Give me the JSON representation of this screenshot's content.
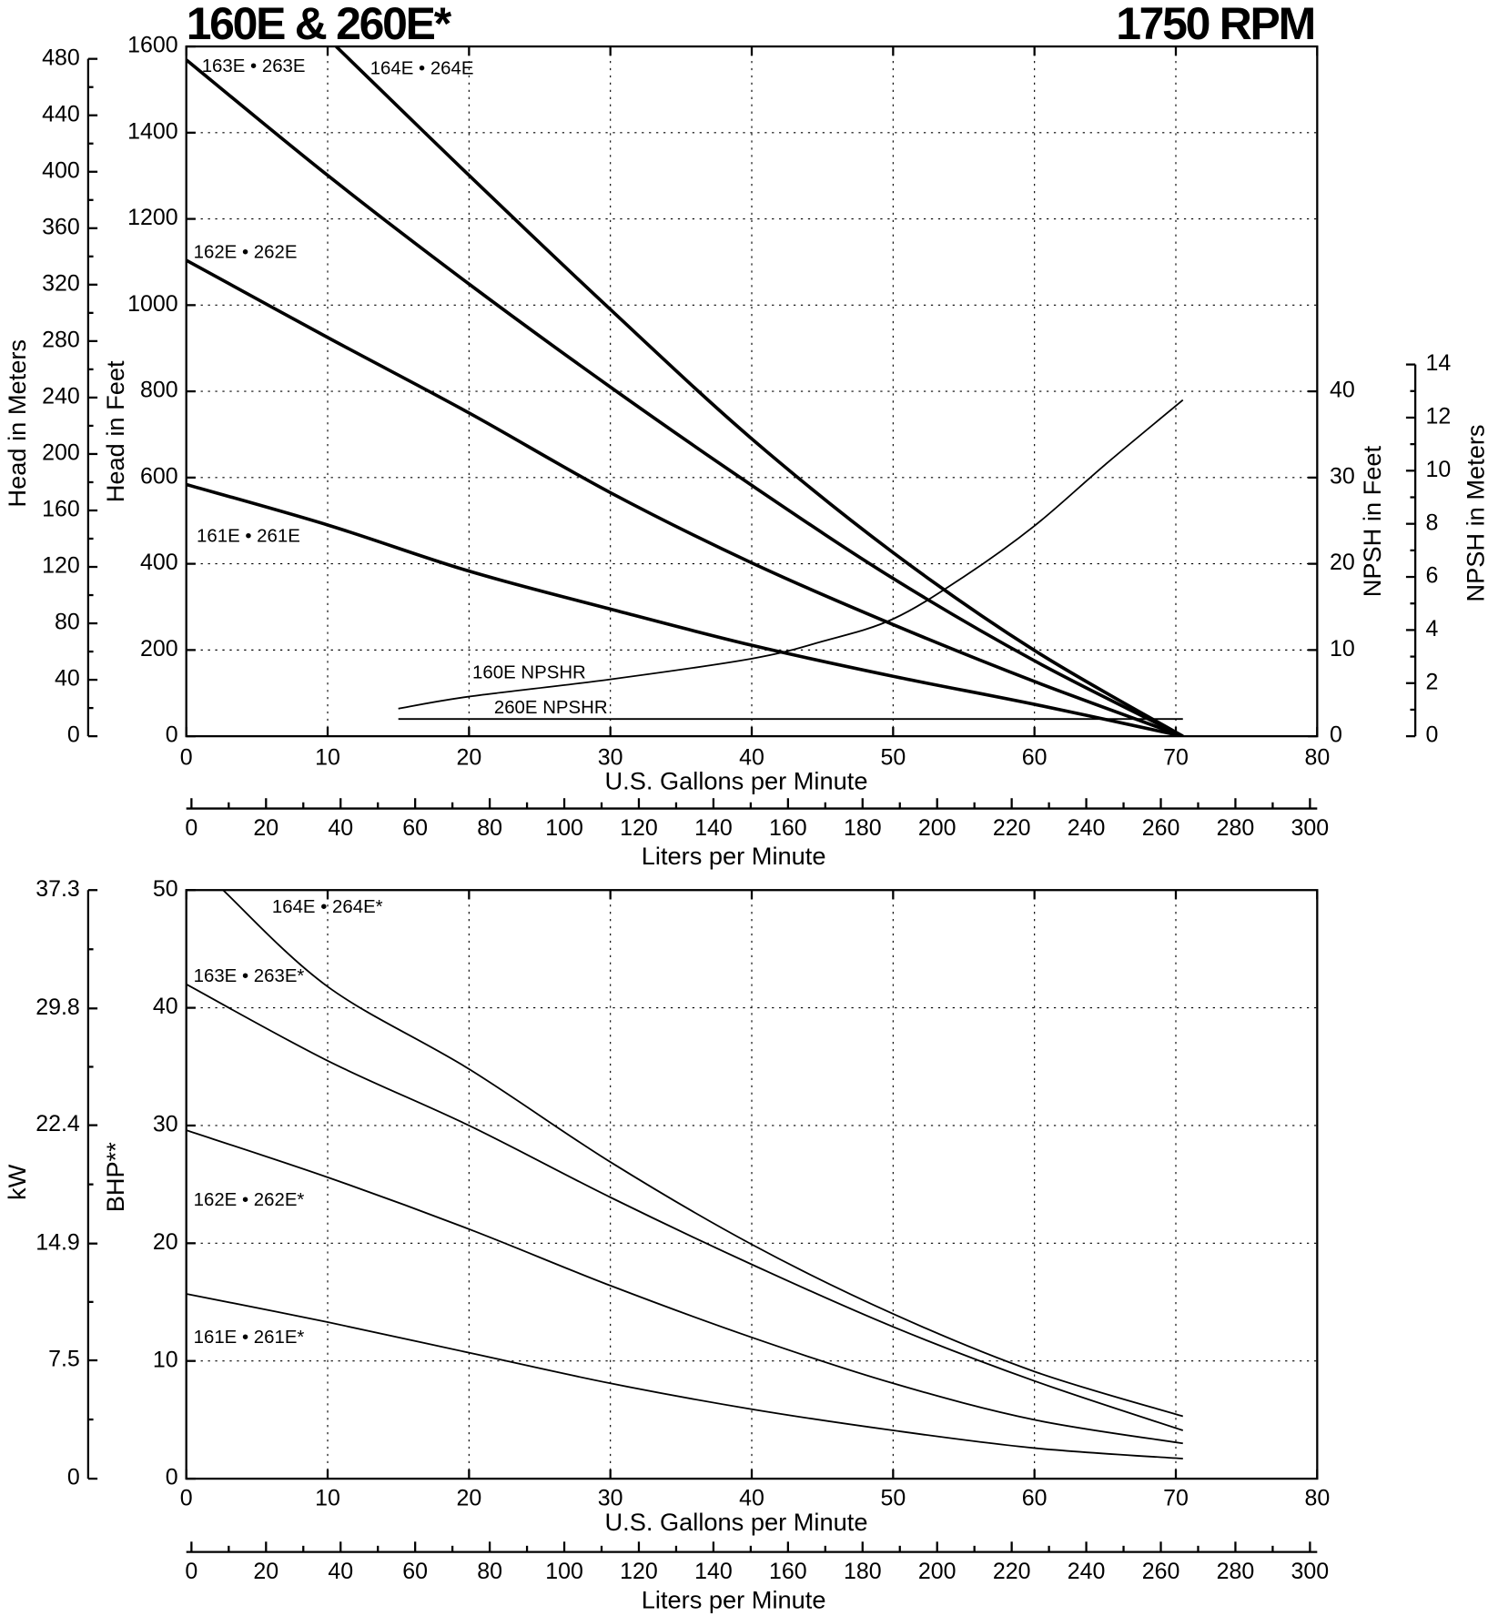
{
  "chart_data": [
    {
      "type": "line",
      "title": "160E & 260E*",
      "subtitle": "1750 RPM",
      "xlabel": "U.S. Gallons per Minute",
      "xlim": [
        0,
        80
      ],
      "xticks": [
        0,
        10,
        20,
        30,
        40,
        50,
        60,
        70,
        80
      ],
      "x2label": "Liters per Minute",
      "x2lim": [
        0,
        300
      ],
      "x2ticks": [
        0,
        20,
        40,
        60,
        80,
        100,
        120,
        140,
        160,
        180,
        200,
        220,
        240,
        260,
        280,
        300
      ],
      "x2minorticks": [
        10,
        30,
        50,
        70,
        90,
        110,
        130,
        150,
        170,
        190,
        210,
        230,
        250,
        270,
        290
      ],
      "ylabel": "Head in Feet",
      "ylim": [
        0,
        1600
      ],
      "yticks": [
        0,
        200,
        400,
        600,
        800,
        1000,
        1200,
        1400,
        1600
      ],
      "y3label": "Head in Meters",
      "y3lim": [
        0,
        480
      ],
      "y3ticks": [
        0,
        40,
        80,
        120,
        160,
        200,
        240,
        280,
        320,
        360,
        400,
        440,
        480
      ],
      "y2label": "NPSH in Feet",
      "y2lim": [
        0,
        80
      ],
      "y2ticks": [
        0,
        10,
        20,
        30,
        40
      ],
      "y4label": "NPSH in Meters",
      "y4lim": [
        0,
        14
      ],
      "y4ticks": [
        0,
        2,
        4,
        6,
        8,
        10,
        12,
        14
      ],
      "grid": true,
      "series": [
        {
          "name": "161E • 261E",
          "color": "#000000",
          "line_width": 3.2,
          "x": [
            0,
            10,
            20,
            30,
            40,
            50,
            60,
            70.5
          ],
          "values": [
            584,
            490,
            383,
            295,
            211,
            139,
            74,
            0
          ]
        },
        {
          "name": "162E • 262E",
          "color": "#000000",
          "line_width": 3.2,
          "x": [
            0,
            10,
            20,
            30,
            40,
            50,
            60,
            70.5
          ],
          "values": [
            1104,
            925,
            750,
            565,
            402,
            259,
            127,
            0
          ]
        },
        {
          "name": "163E • 263E",
          "color": "#000000",
          "line_width": 3.2,
          "x": [
            0,
            10,
            20,
            30,
            40,
            50,
            60,
            70.5
          ],
          "values": [
            1569,
            1301,
            1049,
            810,
            582,
            366,
            175,
            0
          ]
        },
        {
          "name": "164E • 264E",
          "color": "#000000",
          "line_width": 3.2,
          "x": [
            10.6,
            20,
            30,
            40,
            50,
            60,
            70.5
          ],
          "values": [
            1600,
            1301,
            990,
            690,
            426,
            199,
            0
          ]
        },
        {
          "name": "160E NPSHR",
          "color": "#000000",
          "line_width": 1.6,
          "axis": "y2",
          "x": [
            15,
            20,
            30,
            40,
            45,
            50,
            55,
            60,
            65,
            70.5
          ],
          "values": [
            3.2,
            4.6,
            6.6,
            9.0,
            11.0,
            13.6,
            18.5,
            24.4,
            31.5,
            39
          ]
        },
        {
          "name": "260E NPSHR",
          "color": "#000000",
          "line_width": 1.6,
          "axis": "y2",
          "x": [
            15,
            70.5
          ],
          "values": [
            2,
            2
          ]
        }
      ]
    },
    {
      "type": "line",
      "xlabel": "U.S. Gallons per Minute",
      "xlim": [
        0,
        80
      ],
      "xticks": [
        0,
        10,
        20,
        30,
        40,
        50,
        60,
        70,
        80
      ],
      "x2label": "Liters per Minute",
      "x2lim": [
        0,
        300
      ],
      "x2ticks": [
        0,
        20,
        40,
        60,
        80,
        100,
        120,
        140,
        160,
        180,
        200,
        220,
        240,
        260,
        280,
        300
      ],
      "x2minorticks": [
        10,
        30,
        50,
        70,
        90,
        110,
        130,
        150,
        170,
        190,
        210,
        230,
        250,
        270,
        290
      ],
      "ylabel": "BHP**",
      "ylim": [
        0,
        50
      ],
      "yticks": [
        0,
        10,
        20,
        30,
        40,
        50
      ],
      "y3label": "kW",
      "y3lim": [
        0,
        37.3
      ],
      "y3ticks": [
        0,
        7.5,
        14.9,
        22.4,
        29.8,
        37.3
      ],
      "grid": true,
      "series": [
        {
          "name": "161E • 261E*",
          "color": "#000000",
          "line_width": 1.6,
          "x": [
            0,
            10,
            20,
            30,
            40,
            50,
            60,
            70.5
          ],
          "values": [
            15.7,
            13.3,
            10.7,
            8.1,
            5.9,
            4.1,
            2.6,
            1.7
          ]
        },
        {
          "name": "162E • 262E*",
          "color": "#000000",
          "line_width": 1.6,
          "x": [
            0,
            10,
            20,
            30,
            40,
            50,
            60,
            70.5
          ],
          "values": [
            29.6,
            25.6,
            21.2,
            16.4,
            12.0,
            8.1,
            5.0,
            3.0
          ]
        },
        {
          "name": "163E • 263E*",
          "color": "#000000",
          "line_width": 1.6,
          "x": [
            0,
            10,
            20,
            30,
            40,
            50,
            60,
            70.5
          ],
          "values": [
            42.0,
            35.5,
            30.0,
            23.9,
            18.2,
            12.9,
            8.3,
            4.1
          ]
        },
        {
          "name": "164E • 264E*",
          "color": "#000000",
          "line_width": 1.6,
          "x": [
            2.6,
            10,
            20,
            30,
            40,
            50,
            60,
            70.5
          ],
          "values": [
            50,
            41.8,
            34.8,
            26.9,
            19.9,
            14.0,
            9.1,
            5.3
          ]
        }
      ]
    }
  ]
}
